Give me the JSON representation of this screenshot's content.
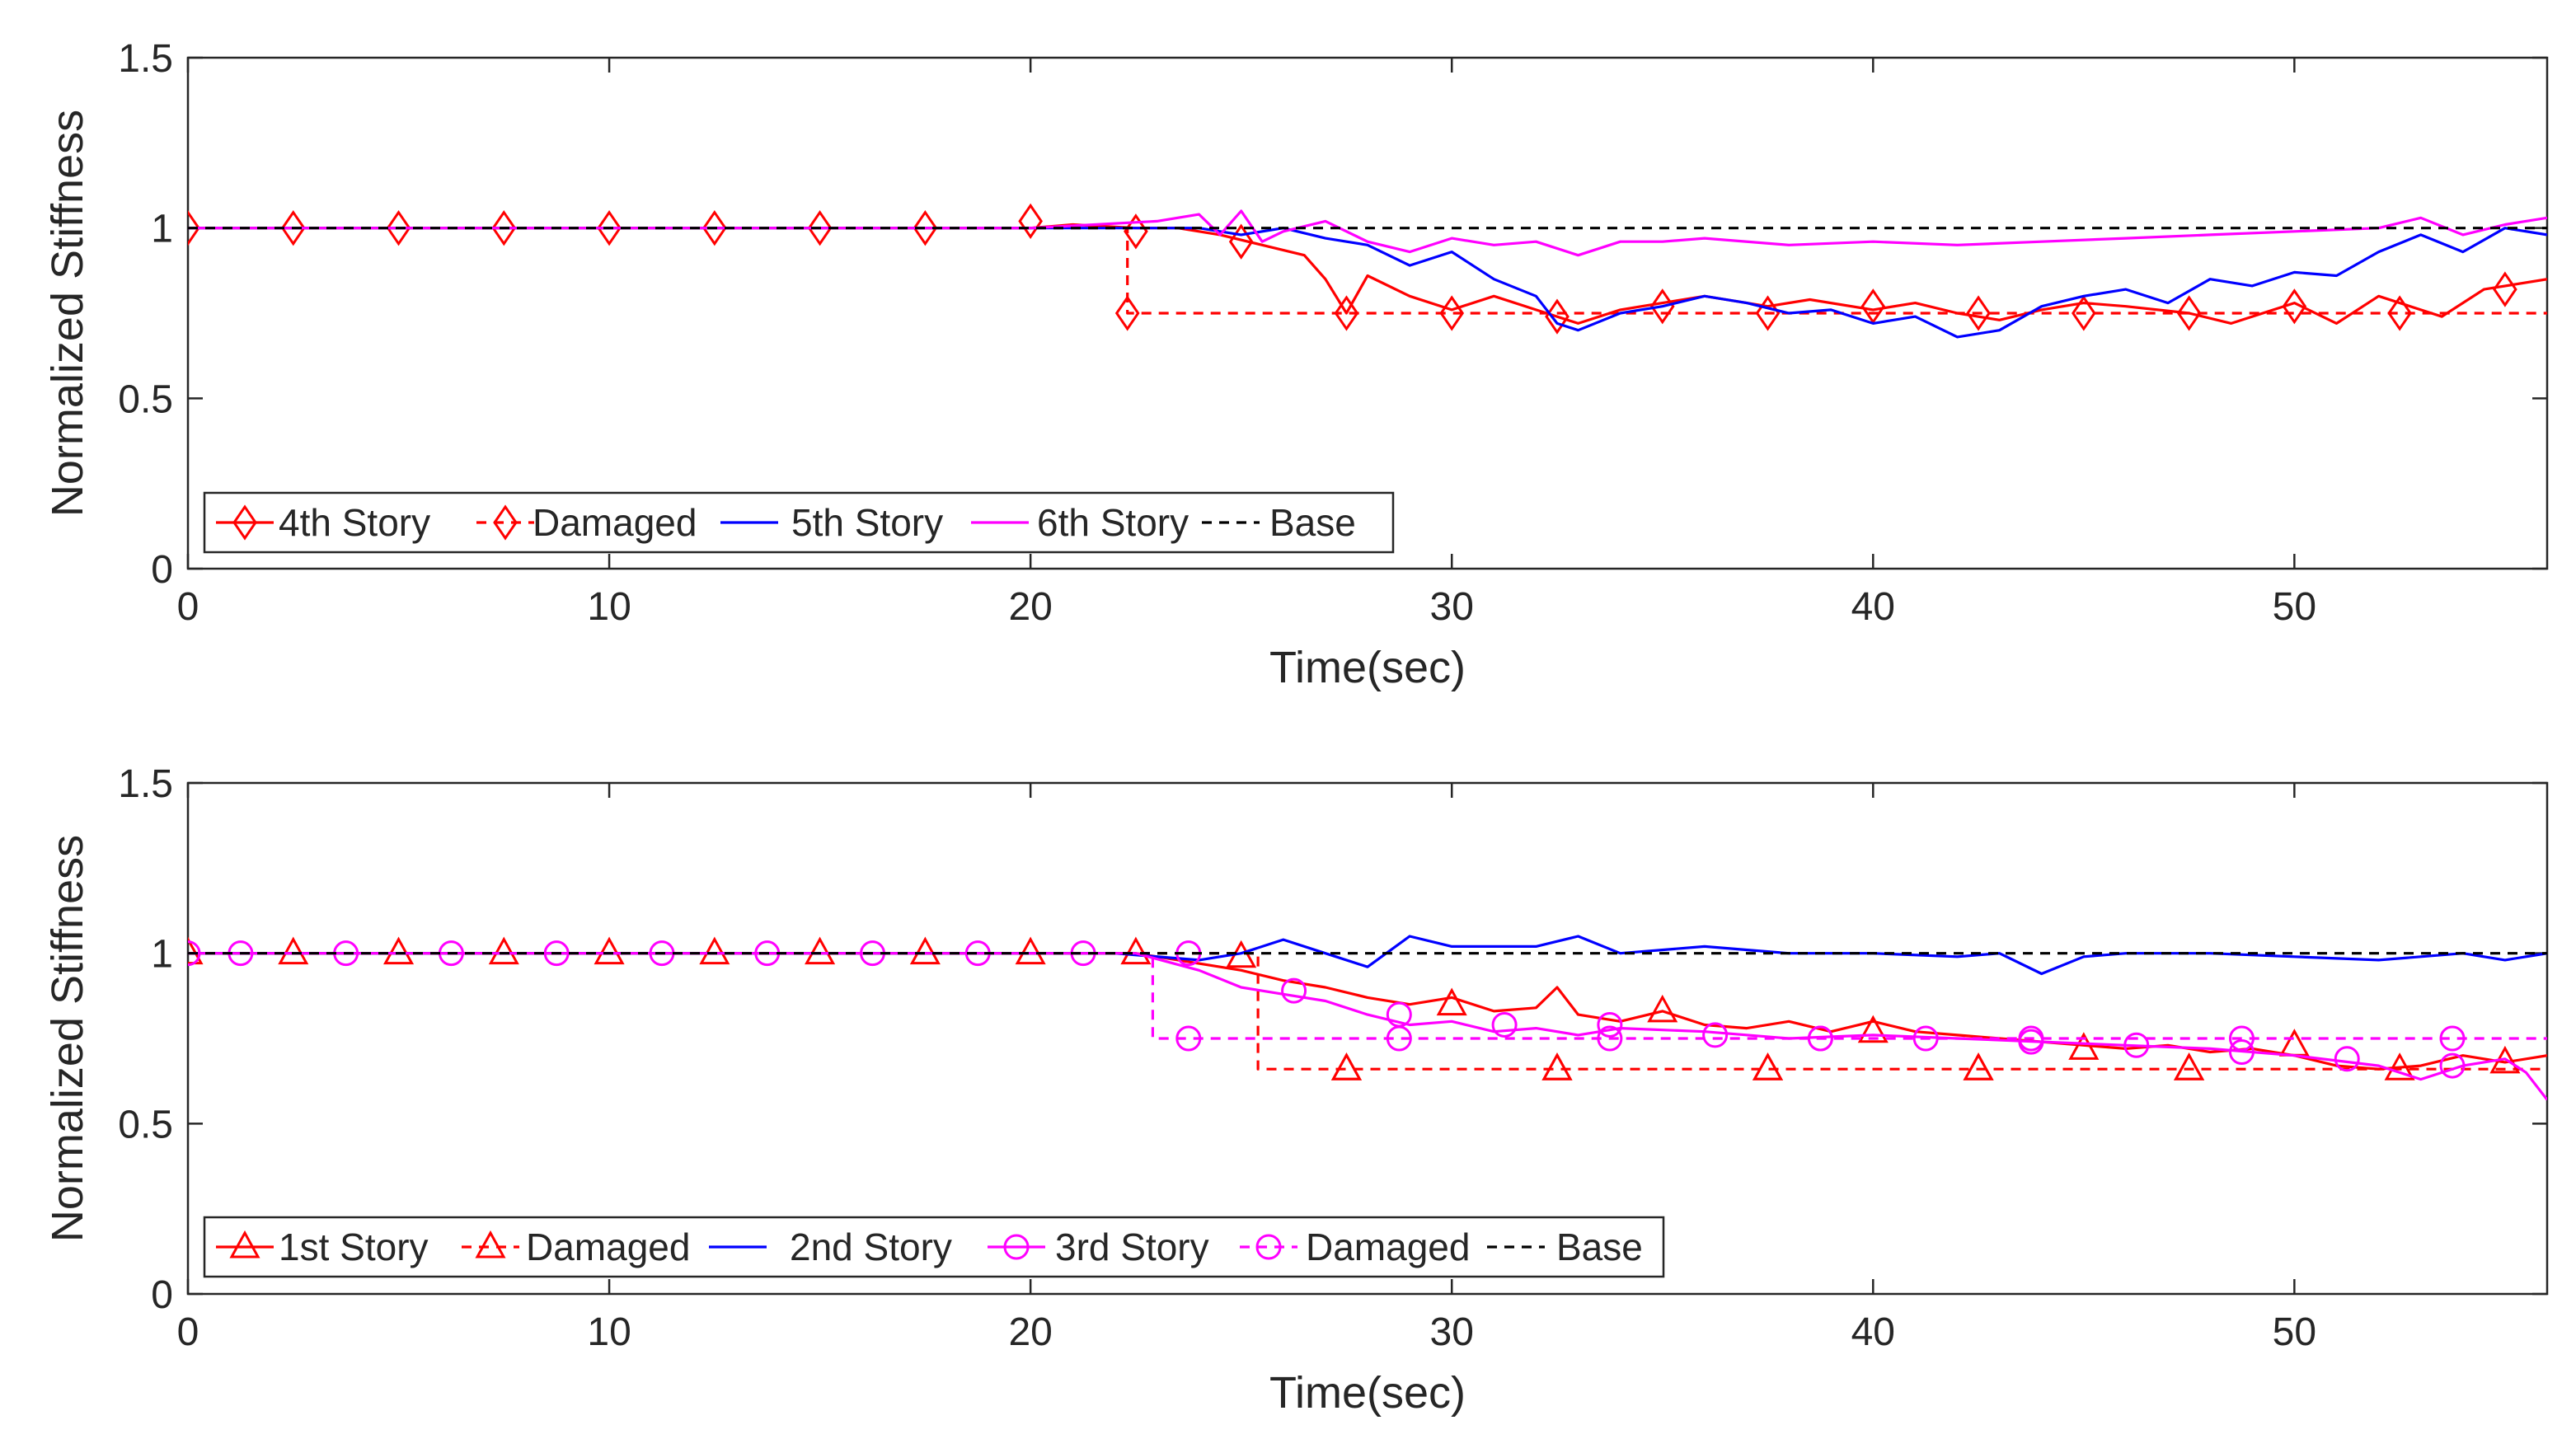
{
  "chart_data": [
    {
      "type": "line",
      "xlabel": "Time(sec)",
      "ylabel": "Normalized Stiffness",
      "xlim": [
        0,
        56
      ],
      "ylim": [
        0,
        1.5
      ],
      "xticks": [
        0,
        10,
        20,
        30,
        40,
        50
      ],
      "yticks": [
        0,
        0.5,
        1,
        1.5
      ],
      "xtick_labels": [
        "0",
        "10",
        "20",
        "30",
        "40",
        "50"
      ],
      "ytick_labels": [
        "0",
        "0.5",
        "1",
        "1.5"
      ],
      "legend_position": "bottom-left",
      "series": [
        {
          "name": "4th Story",
          "color": "#ff0000",
          "style": "solid",
          "marker": "diamond",
          "x": [
            0,
            2.5,
            5,
            7.5,
            10,
            12.5,
            15,
            17.5,
            20,
            21,
            22.5,
            23.5,
            24.5,
            25.5,
            26.5,
            27,
            27.5,
            28,
            29,
            30,
            31,
            32,
            33,
            34,
            35,
            36,
            37.5,
            38.5,
            40,
            41,
            42,
            43,
            44,
            45,
            46,
            47.5,
            48.5,
            50,
            51,
            52,
            53.5,
            54.5,
            56
          ],
          "y": [
            1.0,
            1.0,
            1.0,
            1.0,
            1.0,
            1.0,
            1.0,
            1.0,
            1.0,
            1.01,
            1.0,
            1.0,
            0.98,
            0.95,
            0.92,
            0.85,
            0.75,
            0.86,
            0.8,
            0.76,
            0.8,
            0.76,
            0.72,
            0.76,
            0.78,
            0.8,
            0.77,
            0.79,
            0.76,
            0.78,
            0.75,
            0.73,
            0.76,
            0.78,
            0.77,
            0.75,
            0.72,
            0.78,
            0.72,
            0.8,
            0.74,
            0.82,
            0.85
          ],
          "marker_x": [
            0,
            2.5,
            5,
            7.5,
            10,
            12.5,
            15,
            17.5,
            20,
            22.5,
            25,
            27.5,
            30,
            32.5,
            35,
            37.5,
            40,
            42.5,
            45,
            47.5,
            50,
            52.5,
            55
          ],
          "marker_y": [
            1.0,
            1.0,
            1.0,
            1.0,
            1.0,
            1.0,
            1.0,
            1.0,
            1.02,
            0.99,
            0.96,
            0.75,
            0.75,
            0.74,
            0.77,
            0.75,
            0.77,
            0.75,
            0.75,
            0.75,
            0.77,
            0.75,
            0.82
          ]
        },
        {
          "name": "Damaged",
          "color": "#ff0000",
          "style": "dashed",
          "marker": "diamond",
          "x": [
            0,
            22.3,
            22.3,
            56
          ],
          "y": [
            1.0,
            1.0,
            0.75,
            0.75
          ],
          "marker_x": [
            22.3
          ],
          "marker_y": [
            0.75
          ]
        },
        {
          "name": "5th Story",
          "color": "#0000ff",
          "style": "solid",
          "marker": "none",
          "x": [
            0,
            5,
            10,
            15,
            20,
            22,
            24,
            25,
            26,
            27,
            28,
            29,
            30,
            31,
            32,
            32.5,
            33,
            34,
            35,
            36,
            37,
            38,
            39,
            40,
            41,
            42,
            43,
            44,
            45,
            46,
            47,
            48,
            49,
            50,
            51,
            52,
            53,
            54,
            55,
            56
          ],
          "y": [
            1.0,
            1.0,
            1.0,
            1.0,
            1.0,
            1.0,
            1.0,
            0.98,
            1.0,
            0.97,
            0.95,
            0.89,
            0.93,
            0.85,
            0.8,
            0.72,
            0.7,
            0.75,
            0.77,
            0.8,
            0.78,
            0.75,
            0.76,
            0.72,
            0.74,
            0.68,
            0.7,
            0.77,
            0.8,
            0.82,
            0.78,
            0.85,
            0.83,
            0.87,
            0.86,
            0.93,
            0.98,
            0.93,
            1.0,
            0.98
          ]
        },
        {
          "name": "6th Story",
          "color": "#ff00ff",
          "style": "solid",
          "marker": "none",
          "x": [
            0,
            5,
            10,
            15,
            20,
            23,
            24,
            24.5,
            25,
            25.5,
            26,
            27,
            28,
            29,
            30,
            31,
            32,
            33,
            34,
            35,
            36,
            38,
            40,
            42,
            44,
            46,
            48,
            50,
            52,
            53,
            54,
            55,
            56
          ],
          "y": [
            1.0,
            1.0,
            1.0,
            1.0,
            1.0,
            1.02,
            1.04,
            0.98,
            1.05,
            0.96,
            0.99,
            1.02,
            0.96,
            0.93,
            0.97,
            0.95,
            0.96,
            0.92,
            0.96,
            0.96,
            0.97,
            0.95,
            0.96,
            0.95,
            0.96,
            0.97,
            0.98,
            0.99,
            1.0,
            1.03,
            0.98,
            1.01,
            1.03
          ]
        },
        {
          "name": "Base",
          "color": "#000000",
          "style": "dashed",
          "marker": "none",
          "x": [
            0,
            56
          ],
          "y": [
            1.0,
            1.0
          ]
        }
      ]
    },
    {
      "type": "line",
      "xlabel": "Time(sec)",
      "ylabel": "Normalized Stiffness",
      "xlim": [
        0,
        56
      ],
      "ylim": [
        0,
        1.5
      ],
      "xticks": [
        0,
        10,
        20,
        30,
        40,
        50
      ],
      "yticks": [
        0,
        0.5,
        1,
        1.5
      ],
      "xtick_labels": [
        "0",
        "10",
        "20",
        "30",
        "40",
        "50"
      ],
      "ytick_labels": [
        "0",
        "0.5",
        "1",
        "1.5"
      ],
      "legend_position": "bottom-left",
      "series": [
        {
          "name": "1st Story",
          "color": "#ff0000",
          "style": "solid",
          "marker": "triangle",
          "x": [
            0,
            5,
            10,
            15,
            20,
            22.5,
            24,
            25,
            26,
            27,
            28,
            29,
            30,
            31,
            32,
            32.5,
            33,
            34,
            35,
            36,
            37,
            38,
            39,
            40,
            41,
            42,
            43,
            44,
            45,
            46,
            47,
            48,
            49,
            50,
            51,
            52,
            53,
            54,
            55,
            56
          ],
          "y": [
            1.0,
            1.0,
            1.0,
            1.0,
            1.0,
            1.0,
            0.97,
            0.95,
            0.92,
            0.9,
            0.87,
            0.85,
            0.87,
            0.83,
            0.84,
            0.9,
            0.82,
            0.8,
            0.83,
            0.79,
            0.78,
            0.8,
            0.77,
            0.8,
            0.77,
            0.76,
            0.75,
            0.74,
            0.73,
            0.72,
            0.73,
            0.71,
            0.72,
            0.7,
            0.67,
            0.66,
            0.67,
            0.7,
            0.68,
            0.7
          ],
          "marker_x": [
            0,
            2.5,
            5,
            7.5,
            10,
            12.5,
            15,
            17.5,
            20,
            22.5,
            25,
            27.5,
            30,
            32.5,
            35,
            37.5,
            40,
            42.5,
            45,
            47.5,
            50,
            52.5,
            55
          ],
          "marker_y": [
            1.0,
            1.0,
            1.0,
            1.0,
            1.0,
            1.0,
            1.0,
            1.0,
            1.0,
            1.0,
            0.99,
            0.66,
            0.85,
            0.66,
            0.83,
            0.66,
            0.77,
            0.66,
            0.72,
            0.66,
            0.73,
            0.66,
            0.68
          ]
        },
        {
          "name": "Damaged",
          "color": "#ff0000",
          "style": "dashed",
          "marker": "triangle",
          "x": [
            0,
            25.4,
            25.4,
            56
          ],
          "y": [
            1.0,
            1.0,
            0.66,
            0.66
          ],
          "marker_x": [
            27.5,
            32.5,
            37.5,
            42.5,
            47.5
          ],
          "marker_y": [
            0.66,
            0.66,
            0.66,
            0.66,
            0.66
          ]
        },
        {
          "name": "2nd Story",
          "color": "#0000ff",
          "style": "solid",
          "marker": "none",
          "x": [
            0,
            5,
            10,
            15,
            20,
            22,
            24,
            25,
            26,
            27,
            28,
            29,
            30,
            32,
            33,
            34,
            36,
            38,
            40,
            42,
            43,
            44,
            45,
            46,
            48,
            50,
            52,
            54,
            55,
            56
          ],
          "y": [
            1.0,
            1.0,
            1.0,
            1.0,
            1.0,
            1.0,
            0.98,
            1.0,
            1.04,
            1.0,
            0.96,
            1.05,
            1.02,
            1.02,
            1.05,
            1.0,
            1.02,
            1.0,
            1.0,
            0.99,
            1.0,
            0.94,
            0.99,
            1.0,
            1.0,
            0.99,
            0.98,
            1.0,
            0.98,
            1.0
          ]
        },
        {
          "name": "3rd Story",
          "color": "#ff00ff",
          "style": "solid",
          "marker": "circle",
          "x": [
            0,
            5,
            10,
            15,
            20,
            22.5,
            24,
            25,
            26,
            27,
            28,
            29,
            30,
            31,
            32,
            33,
            34,
            36,
            38,
            40,
            42,
            44,
            46,
            48,
            50,
            52,
            53,
            54,
            55,
            55.5,
            56
          ],
          "y": [
            1.0,
            1.0,
            1.0,
            1.0,
            1.0,
            1.0,
            0.95,
            0.9,
            0.88,
            0.86,
            0.82,
            0.79,
            0.8,
            0.77,
            0.78,
            0.76,
            0.78,
            0.77,
            0.75,
            0.76,
            0.75,
            0.74,
            0.73,
            0.72,
            0.7,
            0.67,
            0.63,
            0.67,
            0.69,
            0.65,
            0.57
          ],
          "marker_x": [
            0,
            1.25,
            3.75,
            6.25,
            8.75,
            11.25,
            13.75,
            16.25,
            18.75,
            21.25,
            23.75,
            26.25,
            28.75,
            31.25,
            33.75,
            36.25,
            38.75,
            41.25,
            43.75,
            46.25,
            48.75,
            51.25,
            53.75
          ],
          "marker_y": [
            1.0,
            1.0,
            1.0,
            1.0,
            1.0,
            1.0,
            1.0,
            1.0,
            1.0,
            1.0,
            1.0,
            0.89,
            0.82,
            0.79,
            0.79,
            0.76,
            0.75,
            0.75,
            0.74,
            0.73,
            0.71,
            0.69,
            0.67
          ]
        },
        {
          "name": "Damaged",
          "color": "#ff00ff",
          "style": "dashed",
          "marker": "circle",
          "x": [
            0,
            22.9,
            22.9,
            56
          ],
          "y": [
            1.0,
            1.0,
            0.75,
            0.75
          ],
          "marker_x": [
            23.75,
            28.75,
            33.75,
            38.75,
            43.75,
            48.75,
            53.75
          ],
          "marker_y": [
            0.75,
            0.75,
            0.75,
            0.75,
            0.75,
            0.75,
            0.75
          ]
        },
        {
          "name": "Base",
          "color": "#000000",
          "style": "dashed",
          "marker": "none",
          "x": [
            0,
            56
          ],
          "y": [
            1.0,
            1.0
          ]
        }
      ]
    }
  ]
}
